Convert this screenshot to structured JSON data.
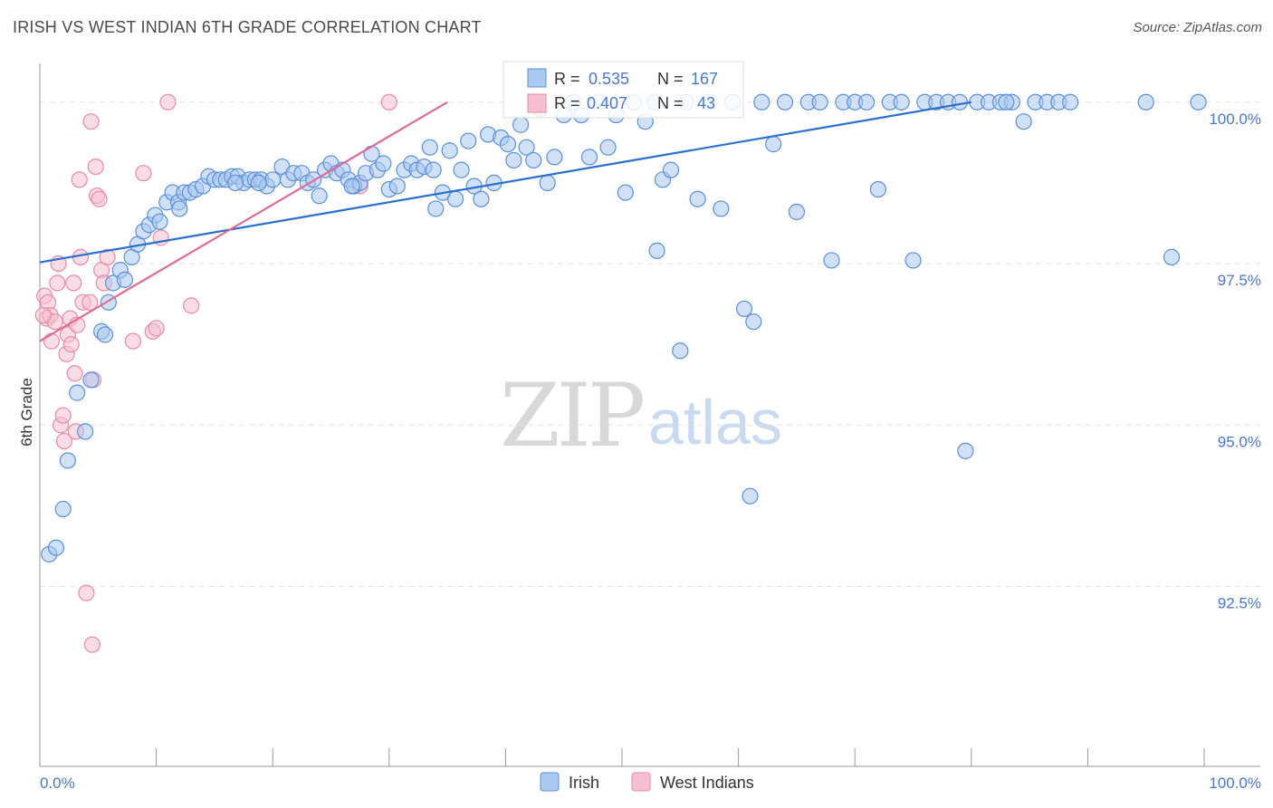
{
  "header": {
    "title": "IRISH VS WEST INDIAN 6TH GRADE CORRELATION CHART",
    "source": "Source: ZipAtlas.com"
  },
  "watermark": {
    "zip": "ZIP",
    "atlas": "atlas"
  },
  "colors": {
    "irish_fill": "#aac8f0",
    "irish_stroke": "#5b8fd8",
    "irish_line": "#2a6fd0",
    "west_fill": "#f5bfd0",
    "west_stroke": "#e88aa8",
    "west_line": "#e06a96",
    "tick_label": "#4a78c8",
    "grid": "#e3e3e3"
  },
  "stats": {
    "irish": {
      "r_label": "R =",
      "r_value": "0.535",
      "n_label": "N =",
      "n_value": "167"
    },
    "west": {
      "r_label": "R =",
      "r_value": "0.407",
      "n_label": "N =",
      "n_value": "43"
    }
  },
  "chart_data": {
    "type": "scatter",
    "title": "IRISH VS WEST INDIAN 6TH GRADE CORRELATION CHART",
    "xlabel": "",
    "ylabel": "6th Grade",
    "xlim": [
      0,
      100
    ],
    "ylim": [
      89.8,
      100.6
    ],
    "x_tick_labels": {
      "left": "0.0%",
      "right": "100.0%"
    },
    "y_ticks": [
      {
        "value": 100.0,
        "label": "100.0%"
      },
      {
        "value": 97.5,
        "label": "97.5%"
      },
      {
        "value": 95.0,
        "label": "95.0%"
      },
      {
        "value": 92.5,
        "label": "92.5%"
      }
    ],
    "legend": [
      {
        "name": "Irish",
        "series": "irish"
      },
      {
        "name": "West Indians",
        "series": "west"
      }
    ],
    "series": [
      {
        "name": "Irish",
        "trend": {
          "x0": 0,
          "y0": 97.52,
          "x1": 80,
          "y1": 100.0
        },
        "points": [
          [
            0.8,
            93.0
          ],
          [
            1.4,
            93.1
          ],
          [
            2.0,
            93.7
          ],
          [
            2.4,
            94.45
          ],
          [
            3.2,
            95.5
          ],
          [
            3.9,
            94.9
          ],
          [
            4.4,
            95.7
          ],
          [
            5.3,
            96.45
          ],
          [
            5.6,
            96.4
          ],
          [
            5.9,
            96.9
          ],
          [
            6.3,
            97.2
          ],
          [
            6.9,
            97.4
          ],
          [
            7.3,
            97.25
          ],
          [
            7.9,
            97.6
          ],
          [
            8.4,
            97.8
          ],
          [
            8.9,
            98.0
          ],
          [
            9.4,
            98.1
          ],
          [
            9.9,
            98.25
          ],
          [
            10.3,
            98.15
          ],
          [
            10.9,
            98.45
          ],
          [
            11.4,
            98.6
          ],
          [
            11.9,
            98.45
          ],
          [
            12.4,
            98.6
          ],
          [
            12.9,
            98.6
          ],
          [
            13.4,
            98.65
          ],
          [
            14.0,
            98.7
          ],
          [
            14.5,
            98.85
          ],
          [
            15.0,
            98.8
          ],
          [
            15.5,
            98.8
          ],
          [
            16.0,
            98.8
          ],
          [
            16.5,
            98.85
          ],
          [
            17.0,
            98.85
          ],
          [
            17.5,
            98.75
          ],
          [
            18.0,
            98.8
          ],
          [
            18.5,
            98.8
          ],
          [
            19.0,
            98.8
          ],
          [
            19.5,
            98.7
          ],
          [
            20.0,
            98.8
          ],
          [
            20.8,
            99.0
          ],
          [
            21.3,
            98.8
          ],
          [
            21.8,
            98.9
          ],
          [
            22.5,
            98.9
          ],
          [
            23.0,
            98.75
          ],
          [
            23.5,
            98.8
          ],
          [
            24.0,
            98.55
          ],
          [
            24.5,
            98.95
          ],
          [
            25.0,
            99.05
          ],
          [
            25.5,
            98.9
          ],
          [
            26.0,
            98.95
          ],
          [
            26.5,
            98.8
          ],
          [
            27.0,
            98.7
          ],
          [
            27.5,
            98.75
          ],
          [
            28.0,
            98.9
          ],
          [
            28.5,
            99.2
          ],
          [
            29.0,
            98.95
          ],
          [
            29.5,
            99.05
          ],
          [
            30.0,
            98.65
          ],
          [
            30.7,
            98.7
          ],
          [
            31.3,
            98.95
          ],
          [
            31.9,
            99.05
          ],
          [
            32.4,
            98.95
          ],
          [
            33.0,
            99.0
          ],
          [
            33.5,
            99.3
          ],
          [
            34.0,
            98.35
          ],
          [
            34.6,
            98.6
          ],
          [
            35.2,
            99.25
          ],
          [
            35.7,
            98.5
          ],
          [
            36.2,
            98.95
          ],
          [
            36.8,
            99.4
          ],
          [
            37.3,
            98.7
          ],
          [
            37.9,
            98.5
          ],
          [
            38.5,
            99.5
          ],
          [
            39.0,
            98.75
          ],
          [
            39.6,
            99.45
          ],
          [
            40.2,
            99.35
          ],
          [
            40.7,
            99.1
          ],
          [
            41.3,
            99.65
          ],
          [
            41.8,
            99.3
          ],
          [
            42.4,
            99.1
          ],
          [
            43.0,
            99.9
          ],
          [
            43.6,
            98.75
          ],
          [
            44.2,
            99.15
          ],
          [
            45.0,
            99.8
          ],
          [
            45.8,
            100.0
          ],
          [
            46.5,
            99.8
          ],
          [
            47.2,
            99.15
          ],
          [
            48.0,
            100.0
          ],
          [
            48.8,
            99.3
          ],
          [
            49.5,
            99.8
          ],
          [
            50.3,
            98.6
          ],
          [
            51.0,
            100.0
          ],
          [
            52.0,
            99.7
          ],
          [
            52.8,
            100.0
          ],
          [
            53.5,
            98.8
          ],
          [
            54.2,
            98.95
          ],
          [
            55.5,
            100.0
          ],
          [
            56.5,
            98.5
          ],
          [
            57.5,
            100.0
          ],
          [
            58.5,
            98.35
          ],
          [
            59.5,
            100.0
          ],
          [
            61.0,
            93.9
          ],
          [
            62.0,
            100.0
          ],
          [
            63.0,
            99.35
          ],
          [
            64.0,
            100.0
          ],
          [
            65.0,
            98.3
          ],
          [
            66.0,
            100.0
          ],
          [
            67.0,
            100.0
          ],
          [
            68.0,
            97.55
          ],
          [
            69.0,
            100.0
          ],
          [
            70.0,
            100.0
          ],
          [
            71.0,
            100.0
          ],
          [
            72.0,
            98.65
          ],
          [
            73.0,
            100.0
          ],
          [
            74.0,
            100.0
          ],
          [
            75.0,
            97.55
          ],
          [
            76.0,
            100.0
          ],
          [
            77.0,
            100.0
          ],
          [
            78.0,
            100.0
          ],
          [
            79.0,
            100.0
          ],
          [
            79.5,
            94.6
          ],
          [
            80.5,
            100.0
          ],
          [
            81.5,
            100.0
          ],
          [
            82.5,
            100.0
          ],
          [
            83.5,
            100.0
          ],
          [
            84.5,
            99.7
          ],
          [
            85.5,
            100.0
          ],
          [
            86.5,
            100.0
          ],
          [
            87.5,
            100.0
          ],
          [
            88.5,
            100.0
          ],
          [
            95.0,
            100.0
          ],
          [
            97.2,
            97.6
          ],
          [
            99.5,
            100.0
          ],
          [
            53.0,
            97.7
          ],
          [
            55.0,
            96.15
          ],
          [
            60.5,
            96.8
          ],
          [
            61.3,
            96.6
          ],
          [
            83.0,
            100.0
          ],
          [
            12.0,
            98.35
          ],
          [
            16.8,
            98.75
          ],
          [
            18.8,
            98.75
          ],
          [
            26.8,
            98.7
          ],
          [
            33.8,
            98.95
          ]
        ]
      },
      {
        "name": "West Indians",
        "trend": {
          "x0": 0,
          "y0": 96.3,
          "x1": 35.0,
          "y1": 100.0
        },
        "points": [
          [
            0.4,
            97.0
          ],
          [
            0.6,
            96.65
          ],
          [
            0.7,
            96.9
          ],
          [
            0.9,
            96.7
          ],
          [
            1.0,
            96.3
          ],
          [
            1.3,
            96.6
          ],
          [
            1.5,
            97.2
          ],
          [
            1.6,
            97.5
          ],
          [
            1.8,
            95.0
          ],
          [
            2.0,
            95.15
          ],
          [
            2.1,
            94.75
          ],
          [
            2.3,
            96.1
          ],
          [
            2.4,
            96.4
          ],
          [
            2.6,
            96.65
          ],
          [
            2.7,
            96.25
          ],
          [
            2.9,
            97.2
          ],
          [
            3.0,
            95.8
          ],
          [
            3.1,
            94.9
          ],
          [
            3.2,
            96.55
          ],
          [
            3.4,
            98.8
          ],
          [
            3.5,
            97.6
          ],
          [
            3.7,
            96.9
          ],
          [
            4.0,
            92.4
          ],
          [
            4.3,
            96.9
          ],
          [
            4.4,
            99.7
          ],
          [
            4.5,
            91.6
          ],
          [
            4.6,
            95.7
          ],
          [
            4.8,
            99.0
          ],
          [
            4.9,
            98.55
          ],
          [
            5.1,
            98.5
          ],
          [
            5.3,
            97.4
          ],
          [
            5.5,
            97.2
          ],
          [
            5.8,
            97.6
          ],
          [
            8.0,
            96.3
          ],
          [
            8.9,
            98.9
          ],
          [
            9.7,
            96.45
          ],
          [
            10.0,
            96.5
          ],
          [
            10.4,
            97.9
          ],
          [
            11.0,
            100.0
          ],
          [
            13.0,
            96.85
          ],
          [
            27.5,
            98.7
          ],
          [
            30.0,
            100.0
          ],
          [
            0.3,
            96.7
          ]
        ]
      }
    ]
  }
}
